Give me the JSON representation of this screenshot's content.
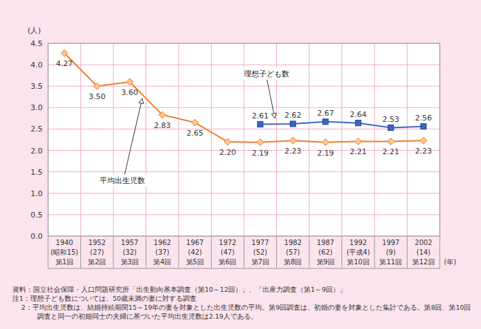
{
  "chart_data": {
    "type": "line",
    "y_label": "(人)",
    "x_label": "(年)",
    "categories": [
      "1940\n(昭和15)\n第1回",
      "1952\n(27)\n第2回",
      "1957\n(32)\n第3回",
      "1962\n(37)\n第4回",
      "1967\n(42)\n第5回",
      "1972\n(47)\n第6回",
      "1977\n(52)\n第7回",
      "1982\n(57)\n第8回",
      "1987\n(62)\n第9回",
      "1992\n(平成4)\n第10回",
      "1997\n(9)\n第11回",
      "2002\n(14)\n第12回"
    ],
    "series": [
      {
        "name": "平均出生児数",
        "color": "#f07b2a",
        "marker": "diamond",
        "values": [
          4.27,
          3.5,
          3.6,
          2.83,
          2.65,
          2.2,
          2.19,
          2.23,
          2.19,
          2.21,
          2.21,
          2.23
        ],
        "value_labels": [
          "4.27",
          "3.50",
          "3.60",
          "2.83",
          "2.65",
          "2.20",
          "2.19",
          "2.23",
          "2.19",
          "2.21",
          "2.21",
          "2.23"
        ]
      },
      {
        "name": "理想子ども数",
        "color": "#3a66c4",
        "marker": "square",
        "values": [
          null,
          null,
          null,
          null,
          null,
          null,
          2.61,
          2.62,
          2.67,
          2.64,
          2.53,
          2.56
        ],
        "value_labels": [
          null,
          null,
          null,
          null,
          null,
          null,
          "2.61",
          "2.62",
          "2.67",
          "2.64",
          "2.53",
          "2.56"
        ]
      }
    ],
    "ylim": [
      0,
      4.5
    ],
    "yticks": [
      {
        "value": 0,
        "label": "0.0"
      },
      0.5,
      {
        "value": 1,
        "label": "1.0"
      },
      1.5,
      {
        "value": 2,
        "label": "2.0"
      },
      2.5,
      {
        "value": 3,
        "label": "3.0"
      },
      3.5,
      {
        "value": 4,
        "label": "4.0"
      },
      4.5
    ],
    "grid": true,
    "data_labels": true,
    "source": "資料：国立社会保障・人口問題研究所「出生動向基本調査（第10～12回）」、「出産力調査（第1～9回）」",
    "notes": [
      "注1：理想子ども数については、50歳未満の妻に対する調査",
      "　 2：平均出生児数は、結婚持続期間15～19年の妻を対象とした出生児数の平均。第9回調査は、初婚の妻を対象とした集計である。第8回、第10回調査と同一の初婚同士の夫婦に基づいた平均出生児数は2.19人である。"
    ]
  }
}
